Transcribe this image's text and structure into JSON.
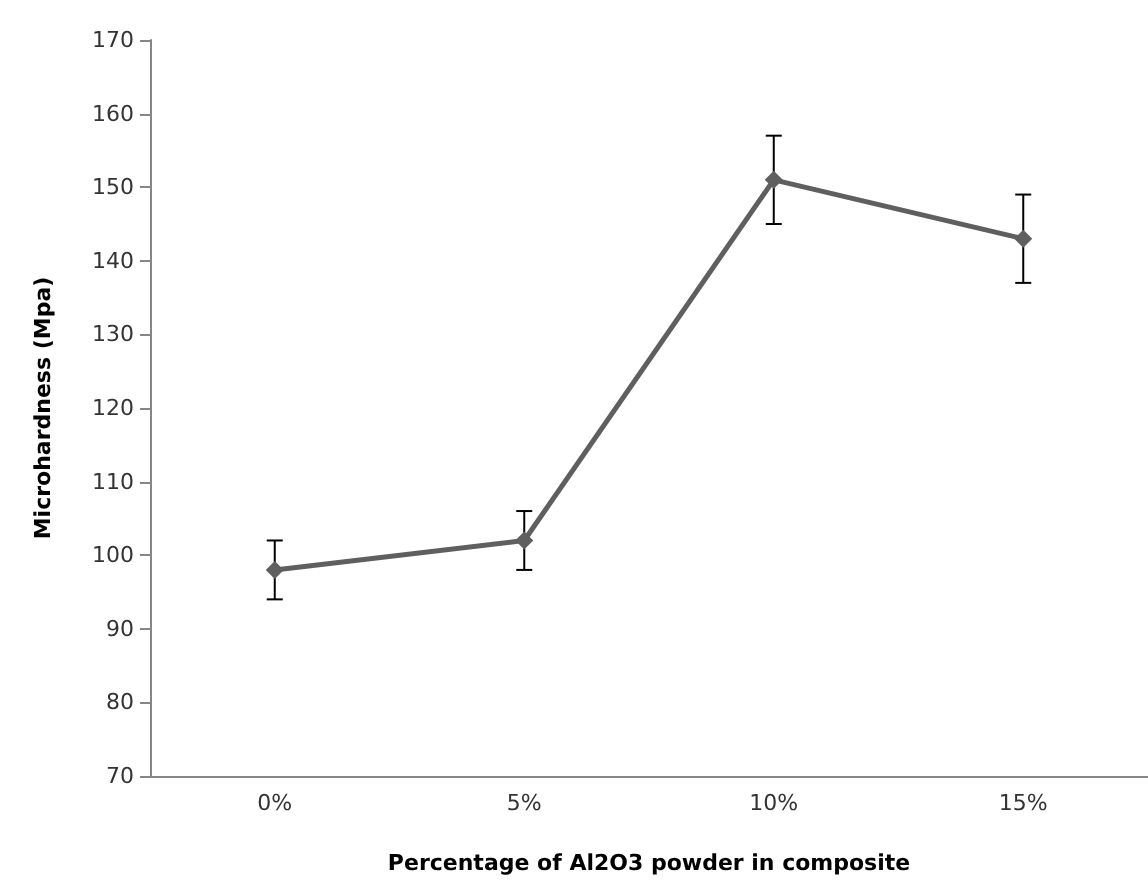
{
  "chart_data": {
    "type": "line",
    "xlabel": "Percentage of Al2O3 powder in composite",
    "ylabel": "Microhardness (Mpa)",
    "categories": [
      "0%",
      "5%",
      "10%",
      "15%"
    ],
    "series": [
      {
        "color": "#5f5f5f",
        "values": [
          98,
          102,
          151,
          143
        ],
        "errors": [
          4,
          4,
          6,
          6
        ]
      }
    ],
    "ylim": [
      70,
      170
    ],
    "yticks": [
      70,
      80,
      90,
      100,
      110,
      120,
      130,
      140,
      150,
      160,
      170
    ],
    "marker": "diamond",
    "line_style": "solid",
    "grid": false
  }
}
